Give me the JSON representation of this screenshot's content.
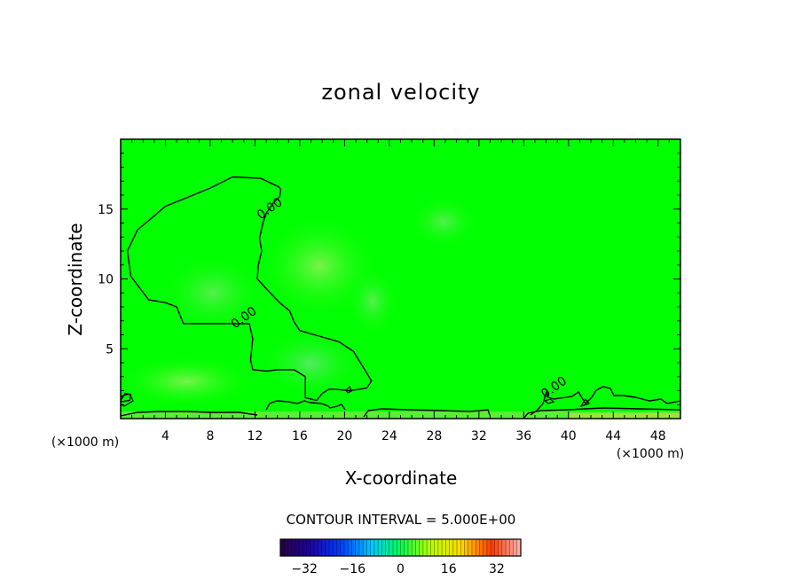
{
  "chart_data": {
    "type": "heatmap",
    "title": "zonal velocity",
    "xlabel": "X-coordinate",
    "ylabel": "Z-coordinate",
    "x_unit_left": "(×1000 m)",
    "x_unit_right": "(×1000 m)",
    "xlim": [
      0,
      50
    ],
    "ylim": [
      0,
      20
    ],
    "x_ticks": [
      4,
      8,
      12,
      16,
      20,
      24,
      28,
      32,
      36,
      40,
      44,
      48
    ],
    "y_ticks": [
      5,
      10,
      15
    ],
    "contour_interval_label": "CONTOUR INTERVAL = 5.000E+00",
    "contour_level": "0.00",
    "contour_labels": [
      {
        "text": "0.00",
        "x": 13.5,
        "y": 14.8
      },
      {
        "text": "0.00",
        "x": 11.2,
        "y": 7.0
      },
      {
        "text": "0.00",
        "x": 38.9,
        "y": 2.0
      }
    ],
    "colorbar": {
      "min": -40,
      "max": 40,
      "step": 5,
      "tick_values": [
        -32,
        -16,
        0,
        16,
        32
      ],
      "tick_labels": [
        "−32",
        "−16",
        "0",
        "16",
        "32"
      ]
    },
    "field_note": "Nearly uniform zonal velocity near 0 (green); slightly positive pale-green patches near x≈14–24, z≈3–12 and near the surface.",
    "contours": [
      {
        "name": "upper-left region",
        "points": [
          [
            14.1,
            16.6
          ],
          [
            12.5,
            17.2
          ],
          [
            10.0,
            17.3
          ],
          [
            8.0,
            16.5
          ],
          [
            4.0,
            15.2
          ],
          [
            1.5,
            13.5
          ],
          [
            0.6,
            12.0
          ],
          [
            0.9,
            10.2
          ],
          [
            2.5,
            8.5
          ],
          [
            4.0,
            8.3
          ],
          [
            5.0,
            8.0
          ],
          [
            5.6,
            6.8
          ],
          [
            8.5,
            6.8
          ],
          [
            11.5,
            6.8
          ],
          [
            11.8,
            5.7
          ],
          [
            11.6,
            4.2
          ],
          [
            11.8,
            3.5
          ],
          [
            13.0,
            3.4
          ],
          [
            14.0,
            3.5
          ],
          [
            15.5,
            3.5
          ],
          [
            16.5,
            3.0
          ],
          [
            16.5,
            1.5
          ],
          [
            17.5,
            1.3
          ],
          [
            18.0,
            1.8
          ],
          [
            18.6,
            2.1
          ],
          [
            19.2,
            2.1
          ],
          [
            20.4,
            2.0
          ],
          [
            21.3,
            2.1
          ],
          [
            22.0,
            2.2
          ],
          [
            22.4,
            2.7
          ],
          [
            21.8,
            3.5
          ],
          [
            20.8,
            4.8
          ],
          [
            19.5,
            5.5
          ],
          [
            17.3,
            6.0
          ],
          [
            16.0,
            6.3
          ],
          [
            15.5,
            6.9
          ],
          [
            15.1,
            7.7
          ],
          [
            14.2,
            8.3
          ],
          [
            13.0,
            9.3
          ],
          [
            12.2,
            10.0
          ],
          [
            12.3,
            11.0
          ],
          [
            12.6,
            12.0
          ],
          [
            12.4,
            12.9
          ],
          [
            12.7,
            14.0
          ],
          [
            13.0,
            14.7
          ],
          [
            13.6,
            15.4
          ],
          [
            14.2,
            15.9
          ],
          [
            14.3,
            16.4
          ]
        ]
      },
      {
        "name": "surface band",
        "points": [
          [
            0.0,
            1.2
          ],
          [
            0.8,
            1.3
          ],
          [
            0.9,
            1.7
          ],
          [
            0.4,
            1.8
          ],
          [
            0.0,
            1.3
          ]
        ]
      }
    ]
  }
}
